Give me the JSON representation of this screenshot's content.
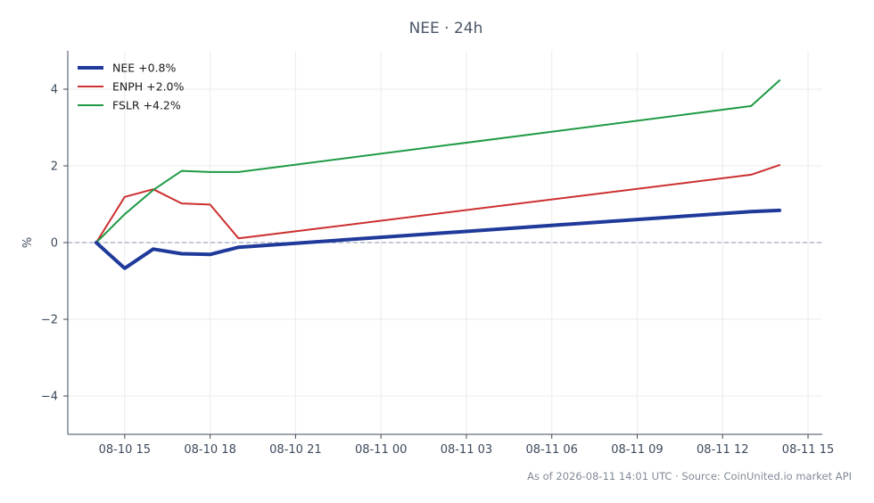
{
  "chart_data": {
    "type": "line",
    "title": "NEE · 24h",
    "ylabel": "%",
    "xlabel": "",
    "ylim": [
      -5,
      5
    ],
    "yticks": [
      -4,
      -2,
      0,
      2,
      4
    ],
    "ytick_labels": [
      "−4",
      "−2",
      "0",
      "2",
      "4"
    ],
    "xlim": [
      "2026-08-10 13:00",
      "2026-08-11 15:30"
    ],
    "xticks": [
      "2026-08-10 15:00",
      "2026-08-10 18:00",
      "2026-08-10 21:00",
      "2026-08-11 00:00",
      "2026-08-11 03:00",
      "2026-08-11 06:00",
      "2026-08-11 09:00",
      "2026-08-11 12:00",
      "2026-08-11 15:00"
    ],
    "xtick_labels": [
      "08-10 15",
      "08-10 18",
      "08-10 21",
      "08-11 00",
      "08-11 03",
      "08-11 06",
      "08-11 09",
      "08-11 12",
      "08-11 15"
    ],
    "grid": true,
    "zero_line": true,
    "legend_position": "top-left",
    "series": [
      {
        "name": "NEE +0.8%",
        "color": "#1f3a9a",
        "emphasis": true,
        "x": [
          "2026-08-10 14:00",
          "2026-08-10 15:00",
          "2026-08-10 16:00",
          "2026-08-10 17:00",
          "2026-08-10 18:00",
          "2026-08-10 19:00",
          "2026-08-11 13:00",
          "2026-08-11 14:00"
        ],
        "values": [
          0.0,
          -0.67,
          -0.17,
          -0.29,
          -0.31,
          -0.12,
          0.81,
          0.84
        ]
      },
      {
        "name": "ENPH +2.0%",
        "color": "#cc2f2f",
        "emphasis": false,
        "x": [
          "2026-08-10 14:00",
          "2026-08-10 15:00",
          "2026-08-10 16:00",
          "2026-08-10 17:00",
          "2026-08-10 18:00",
          "2026-08-10 19:00",
          "2026-08-11 13:00",
          "2026-08-11 14:00"
        ],
        "values": [
          0.0,
          1.19,
          1.39,
          1.02,
          0.99,
          0.11,
          1.77,
          2.02
        ]
      },
      {
        "name": "FSLR +4.2%",
        "color": "#1f9a45",
        "emphasis": false,
        "x": [
          "2026-08-10 14:00",
          "2026-08-10 15:00",
          "2026-08-10 16:00",
          "2026-08-10 17:00",
          "2026-08-10 18:00",
          "2026-08-10 19:00",
          "2026-08-11 13:00",
          "2026-08-11 14:00"
        ],
        "values": [
          0.0,
          0.74,
          1.37,
          1.87,
          1.84,
          1.84,
          3.56,
          4.23
        ]
      }
    ]
  },
  "footnote": "As of 2026-08-11 14:01 UTC · Source: CoinUnited.io market API"
}
